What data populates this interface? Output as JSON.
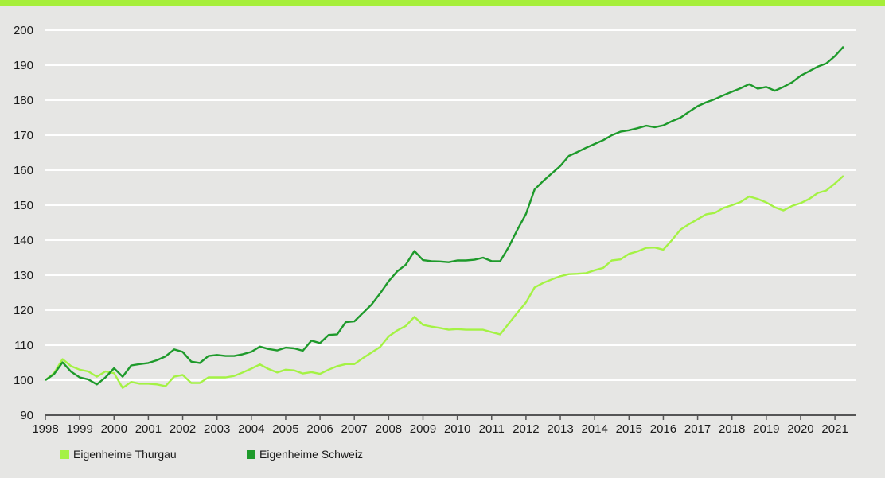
{
  "colors": {
    "background": "#e6e6e4",
    "accent_bar": "#a6ee3a",
    "gridline": "#ffffff",
    "axis": "#555555"
  },
  "chart_data": {
    "type": "line",
    "title": "",
    "xlabel": "",
    "ylabel": "",
    "ylim": [
      90,
      200
    ],
    "xlim": [
      1998,
      2021.6
    ],
    "y_ticks": [
      "90",
      "100",
      "110",
      "120",
      "130",
      "140",
      "150",
      "160",
      "170",
      "180",
      "190",
      "200"
    ],
    "x_ticks": [
      "1998",
      "1999",
      "2000",
      "2001",
      "2002",
      "2003",
      "2004",
      "2005",
      "2006",
      "2007",
      "2008",
      "2009",
      "2010",
      "2011",
      "2012",
      "2013",
      "2014",
      "2015",
      "2016",
      "2017",
      "2018",
      "2019",
      "2020",
      "2021"
    ],
    "grid": true,
    "legend_position": "bottom-left",
    "x_start": 1998.0,
    "x_step": 0.25,
    "series": [
      {
        "name": "Eigenheime Thurgau",
        "color": "#a4f244",
        "values": [
          100,
          102,
          106,
          104,
          103,
          102.5,
          101,
          102.5,
          102,
          97.8,
          99.5,
          99,
          99,
          98.8,
          98.3,
          101,
          101.5,
          99.2,
          99.2,
          100.8,
          100.8,
          100.8,
          101.2,
          102.2,
          103.3,
          104.5,
          103.2,
          102.2,
          103,
          102.8,
          101.9,
          102.3,
          101.8,
          103,
          104,
          104.6,
          104.6,
          106.3,
          107.9,
          109.5,
          112.5,
          114.2,
          115.5,
          118.1,
          115.8,
          115.3,
          114.9,
          114.4,
          114.6,
          114.4,
          114.4,
          114.4,
          113.7,
          113.1,
          116.2,
          119.3,
          122.2,
          126.5,
          127.8,
          128.8,
          129.7,
          130.3,
          130.4,
          130.6,
          131.4,
          132.1,
          134.2,
          134.5,
          136.1,
          136.8,
          137.8,
          137.9,
          137.3,
          140,
          143,
          144.6,
          146,
          147.4,
          147.8,
          149.2,
          150,
          150.9,
          152.5,
          151.8,
          150.8,
          149.4,
          148.5,
          149.8,
          150.6,
          151.8,
          153.5,
          154.2,
          156.2,
          158.4
        ]
      },
      {
        "name": "Eigenheime Schweiz",
        "color": "#1e9a2b",
        "values": [
          100,
          101.7,
          105.1,
          102.4,
          100.8,
          100.2,
          98.8,
          100.8,
          103.4,
          101,
          104.2,
          104.6,
          104.9,
          105.7,
          106.8,
          108.8,
          108.1,
          105.3,
          104.9,
          106.9,
          107.2,
          106.9,
          106.9,
          107.4,
          108.1,
          109.6,
          108.9,
          108.5,
          109.3,
          109.1,
          108.4,
          111.3,
          110.6,
          112.9,
          113.1,
          116.6,
          116.8,
          119.2,
          121.6,
          124.8,
          128.3,
          131.1,
          133,
          136.9,
          134.3,
          134,
          133.9,
          133.7,
          134.2,
          134.2,
          134.4,
          135,
          134,
          134,
          138.1,
          143,
          147.5,
          154.5,
          156.9,
          159.1,
          161.2,
          164.1,
          165.2,
          166.4,
          167.5,
          168.6,
          170,
          171,
          171.4,
          172,
          172.7,
          172.3,
          172.8,
          174,
          175,
          176.7,
          178.3,
          179.4,
          180.3,
          181.4,
          182.4,
          183.4,
          184.6,
          183.3,
          183.8,
          182.7,
          183.8,
          185.1,
          187,
          188.3,
          189.6,
          190.5,
          192.6,
          195.3
        ]
      }
    ]
  }
}
